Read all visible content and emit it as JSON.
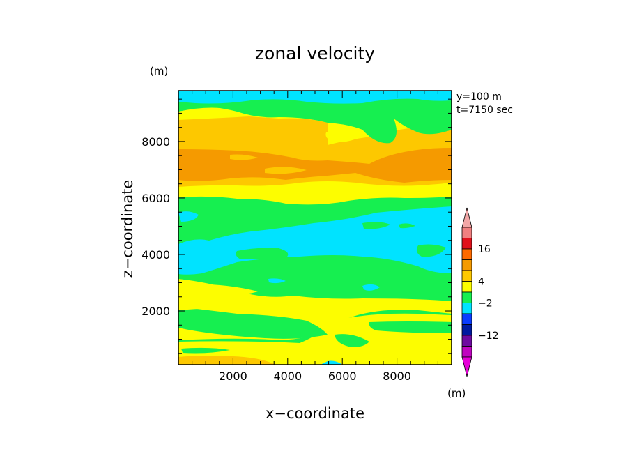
{
  "chart_data": {
    "type": "heatmap",
    "title": "zonal velocity",
    "xlabel": "x−coordinate",
    "ylabel": "z−coordinate",
    "x_unit": "(m)",
    "y_unit": "(m)",
    "annotations": [
      "y=100 m",
      "t=7150 sec"
    ],
    "xlim": [
      0,
      10000
    ],
    "ylim": [
      100,
      9800
    ],
    "xticks": [
      2000,
      4000,
      6000,
      8000
    ],
    "yticks": [
      2000,
      4000,
      6000,
      8000
    ],
    "colorbar": {
      "label": "(m)",
      "labels": [
        {
          "value": 16,
          "text": "16"
        },
        {
          "value": 4,
          "text": "4"
        },
        {
          "value": -2,
          "text": "−2"
        },
        {
          "value": -12,
          "text": "−12"
        }
      ],
      "bins": [
        {
          "level": 9,
          "color": "#f08080"
        },
        {
          "level": 8,
          "color": "#e0101a"
        },
        {
          "level": 7,
          "color": "#ff6a00"
        },
        {
          "level": 6,
          "color": "#f59a00"
        },
        {
          "level": 5,
          "color": "#fdc800"
        },
        {
          "level": 4,
          "color": "#fdfd00"
        },
        {
          "level": 3,
          "color": "#16ef50"
        },
        {
          "level": 2,
          "color": "#00e3ff"
        },
        {
          "level": 1,
          "color": "#0a3cff"
        },
        {
          "level": 0,
          "color": "#001aa0"
        },
        {
          "level": -1,
          "color": "#6e0aa0"
        },
        {
          "level": -2,
          "color": "#c005c0"
        }
      ],
      "over_color": "#f2a7a7",
      "under_color": "#e600d8"
    },
    "band_colors": {
      "green": "#16ef50",
      "cyan": "#00e3ff",
      "yellow": "#fdfd00",
      "gold": "#fdc800",
      "orange": "#f59a00"
    },
    "dominant_bands_by_height": [
      {
        "z_range": [
          100,
          400
        ],
        "band": "gold"
      },
      {
        "z_range": [
          400,
          1500
        ],
        "band": "yellow"
      },
      {
        "z_range": [
          1500,
          2600
        ],
        "band": "green"
      },
      {
        "z_range": [
          2600,
          3000
        ],
        "band": "yellow"
      },
      {
        "z_range": [
          3000,
          3600
        ],
        "band": "green"
      },
      {
        "z_range": [
          3600,
          5200
        ],
        "band": "cyan"
      },
      {
        "z_range": [
          5200,
          5800
        ],
        "band": "green"
      },
      {
        "z_range": [
          5800,
          6600
        ],
        "band": "yellow"
      },
      {
        "z_range": [
          6600,
          7600
        ],
        "band": "orange"
      },
      {
        "z_range": [
          7600,
          8700
        ],
        "band": "gold"
      },
      {
        "z_range": [
          8700,
          9400
        ],
        "band": "green"
      },
      {
        "z_range": [
          9400,
          9800
        ],
        "band": "cyan"
      }
    ]
  }
}
